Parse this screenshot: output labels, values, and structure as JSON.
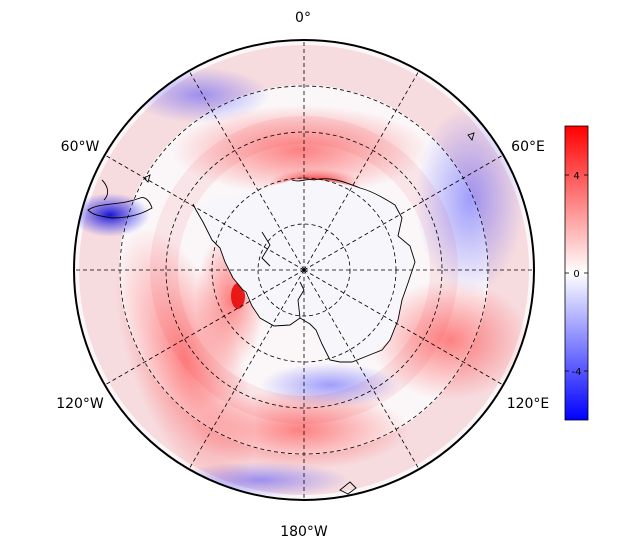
{
  "map": {
    "projection": "south-polar-stereographic",
    "longitude_labels": {
      "top": "0°",
      "upper_right": "60°E",
      "lower_right": "120°E",
      "bottom": "180°W",
      "lower_left": "120°W",
      "upper_left": "60°W"
    },
    "meridians_deg": [
      0,
      30,
      60,
      90,
      120,
      150,
      180,
      210,
      240,
      270,
      300,
      330
    ],
    "parallel_circles": 4,
    "gridline_style": "dashed"
  },
  "colorbar": {
    "colormap": "blue-white-red",
    "min": -6,
    "max": 6,
    "ticks": [
      "4",
      "0",
      "-4"
    ],
    "colors": {
      "negative": "#0000ff",
      "zero": "#ffffff",
      "positive": "#ff0000"
    }
  },
  "field_features": [
    {
      "region": "Antarctic Peninsula west coast",
      "sign": "positive",
      "level": 0.95
    },
    {
      "region": "Drake Passage / Patagonian shelf",
      "sign": "negative",
      "level": 0.9
    },
    {
      "region": "Amundsen-Bellingshausen Sea band",
      "sign": "positive",
      "level": 0.45
    },
    {
      "region": "Dronning Maud Land coast",
      "sign": "positive",
      "level": 0.6
    },
    {
      "region": "Indian Ocean sector outer ring",
      "sign": "negative",
      "level": 0.3
    },
    {
      "region": "Southwest Pacific band",
      "sign": "positive",
      "level": 0.4
    },
    {
      "region": "Ross Sea",
      "sign": "negative",
      "level": 0.2
    }
  ]
}
